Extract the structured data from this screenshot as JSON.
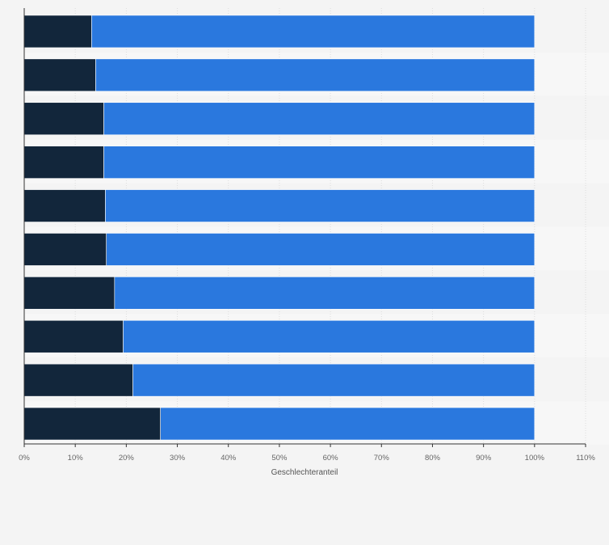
{
  "colors": {
    "background": "#f4f4f4",
    "band_light": "#f7f7f7",
    "grid": "#dddddd",
    "axis": "#333333",
    "series_1": "#12263b",
    "series_2": "#2a78de"
  },
  "chart_data": {
    "type": "bar",
    "orientation": "horizontal",
    "stacked": true,
    "categories": [
      "",
      "",
      "",
      "",
      "",
      "",
      "",
      "",
      "",
      ""
    ],
    "series": [
      {
        "color": "#12263b",
        "values": [
          13.2,
          14.0,
          15.6,
          15.6,
          15.9,
          16.1,
          17.7,
          19.4,
          21.3,
          26.7
        ]
      },
      {
        "color": "#2a78de",
        "values": [
          86.8,
          86.0,
          84.4,
          84.4,
          84.1,
          83.9,
          82.3,
          80.6,
          78.7,
          73.3
        ]
      }
    ],
    "xlim": [
      0,
      110
    ],
    "xticks": [
      "0%",
      "10%",
      "20%",
      "30%",
      "40%",
      "50%",
      "60%",
      "70%",
      "80%",
      "90%",
      "100%",
      "110%"
    ],
    "xlabel": "Geschlechteranteil",
    "ylabel": "",
    "title": "",
    "grid": true,
    "legend": "none"
  }
}
